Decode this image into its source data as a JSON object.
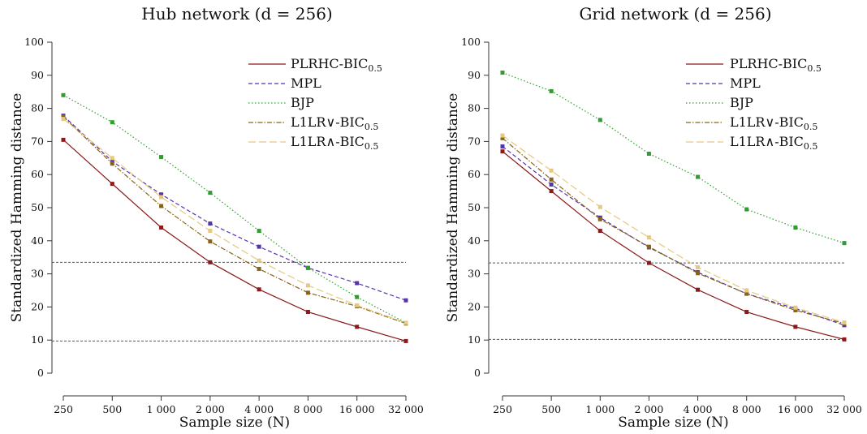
{
  "chart_data": [
    {
      "type": "line",
      "title": "Hub network (d = 256)",
      "xlabel": "Sample size (N)",
      "ylabel": "Standardized Hamming distance",
      "x_scale": "log2",
      "categories": [
        "250",
        "500",
        "1 000",
        "2 000",
        "4 000",
        "8 000",
        "16 000",
        "32 000"
      ],
      "x": [
        250,
        500,
        1000,
        2000,
        4000,
        8000,
        16000,
        32000
      ],
      "ylim": [
        0,
        100
      ],
      "yticks": [
        "0",
        "10",
        "20",
        "30",
        "40",
        "50",
        "60",
        "70",
        "80",
        "90",
        "100"
      ],
      "grid": false,
      "legend_position": "top-right",
      "reference_lines": [
        33.5,
        9.7
      ],
      "series": [
        {
          "name": "PLRHC-BIC",
          "subscript": "0.5",
          "color": "#8b1a1a",
          "dash": "",
          "values": [
            70.5,
            57.2,
            44.0,
            33.5,
            25.3,
            18.5,
            14.0,
            9.7
          ]
        },
        {
          "name": "MPL",
          "subscript": "",
          "color": "#5533aa",
          "dash": "5,3",
          "values": [
            77.8,
            64.0,
            54.0,
            45.2,
            38.2,
            31.8,
            27.2,
            22.0
          ]
        },
        {
          "name": "BJP",
          "subscript": "",
          "color": "#2e9e2e",
          "dash": "1.5,2.5",
          "values": [
            84.0,
            75.8,
            65.3,
            54.5,
            43.0,
            31.8,
            23.0,
            15.2
          ]
        },
        {
          "name": "L1LR∨-BIC",
          "subscript": "0.5",
          "color": "#8a6414",
          "dash": "6,2,1.5,2",
          "values": [
            77.5,
            63.3,
            50.5,
            39.8,
            31.5,
            24.3,
            20.2,
            15.0
          ]
        },
        {
          "name": "L1LR∧-BIC",
          "subscript": "0.5",
          "color": "#e6c880",
          "dash": "9,4",
          "values": [
            76.8,
            65.0,
            53.2,
            43.0,
            34.0,
            26.5,
            20.5,
            15.2
          ]
        }
      ]
    },
    {
      "type": "line",
      "title": "Grid network (d = 256)",
      "xlabel": "Sample size (N)",
      "ylabel": "Standardized Hamming distance",
      "x_scale": "log2",
      "categories": [
        "250",
        "500",
        "1 000",
        "2 000",
        "4 000",
        "8 000",
        "16 000",
        "32 000"
      ],
      "x": [
        250,
        500,
        1000,
        2000,
        4000,
        8000,
        16000,
        32000
      ],
      "ylim": [
        0,
        100
      ],
      "yticks": [
        "0",
        "10",
        "20",
        "30",
        "40",
        "50",
        "60",
        "70",
        "80",
        "90",
        "100"
      ],
      "grid": false,
      "legend_position": "top-right",
      "reference_lines": [
        33.3,
        10.2
      ],
      "series": [
        {
          "name": "PLRHC-BIC",
          "subscript": "0.5",
          "color": "#8b1a1a",
          "dash": "",
          "values": [
            67.0,
            55.0,
            43.0,
            33.3,
            25.2,
            18.5,
            14.0,
            10.2
          ]
        },
        {
          "name": "MPL",
          "subscript": "",
          "color": "#5533aa",
          "dash": "5,3",
          "values": [
            68.5,
            57.0,
            47.0,
            38.0,
            30.5,
            24.0,
            19.5,
            14.5
          ]
        },
        {
          "name": "BJP",
          "subscript": "",
          "color": "#2e9e2e",
          "dash": "1.5,2.5",
          "values": [
            90.8,
            85.2,
            76.5,
            66.3,
            59.3,
            49.5,
            44.0,
            39.3
          ]
        },
        {
          "name": "L1LR∨-BIC",
          "subscript": "0.5",
          "color": "#8a6414",
          "dash": "6,2,1.5,2",
          "values": [
            71.0,
            58.5,
            46.5,
            38.2,
            30.2,
            24.0,
            19.0,
            15.0
          ]
        },
        {
          "name": "L1LR∧-BIC",
          "subscript": "0.5",
          "color": "#e6c880",
          "dash": "9,4",
          "values": [
            71.8,
            61.2,
            50.2,
            41.0,
            32.0,
            25.0,
            19.8,
            15.3
          ]
        }
      ]
    }
  ]
}
